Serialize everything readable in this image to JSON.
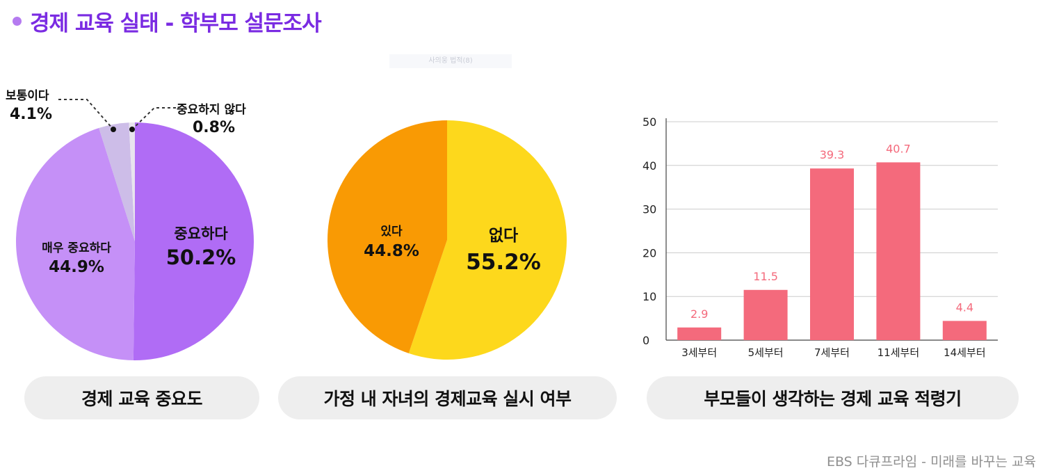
{
  "header": {
    "title": "경제 교육 실태 - 학부모 설문조사"
  },
  "faint_label": "사의웅 법적(8)",
  "footer": "EBS 다큐프라임 - 미래를 바꾸는 교육",
  "colors": {
    "title": "#7a2be2",
    "dot": "#b57bf0",
    "bar": "#f46a7c",
    "bar_label": "#f46a7c"
  },
  "chart_data": [
    {
      "type": "pie",
      "caption": "경제 교육 중요도",
      "slices": [
        {
          "name": "중요하다",
          "value": 50.2,
          "label": "50.2%",
          "color": "#b06cf5"
        },
        {
          "name": "매우 중요하다",
          "value": 44.9,
          "label": "44.9%",
          "color": "#c590f7"
        },
        {
          "name": "보통이다",
          "value": 4.1,
          "label": "4.1%",
          "color": "#cdbde8"
        },
        {
          "name": "중요하지 않다",
          "value": 0.8,
          "label": "0.8%",
          "color": "#e8e4ee"
        }
      ]
    },
    {
      "type": "pie",
      "caption": "가정 내 자녀의 경제교육 실시 여부",
      "slices": [
        {
          "name": "없다",
          "value": 55.2,
          "label": "55.2%",
          "color": "#fdd81c"
        },
        {
          "name": "있다",
          "value": 44.8,
          "label": "44.8%",
          "color": "#f99a04"
        }
      ]
    },
    {
      "type": "bar",
      "caption": "부모들이 생각하는 경제 교육 적령기",
      "categories": [
        "3세부터",
        "5세부터",
        "7세부터",
        "11세부터",
        "14세부터"
      ],
      "values": [
        2.9,
        11.5,
        39.3,
        40.7,
        4.4
      ],
      "value_labels": [
        "2.9",
        "11.5",
        "39.3",
        "40.7",
        "4.4"
      ],
      "ylim": [
        0,
        50
      ],
      "yticks": [
        0,
        10,
        20,
        30,
        40,
        50
      ],
      "grid": true
    }
  ]
}
